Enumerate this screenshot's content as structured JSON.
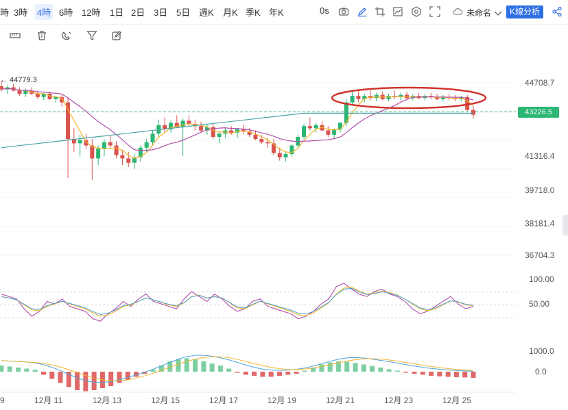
{
  "toolbar": {
    "timeframes": [
      "時",
      "3時",
      "4時",
      "6時",
      "12時",
      "1日",
      "2日",
      "3日",
      "5日",
      "週K",
      "月K",
      "季K",
      "年K"
    ],
    "active_timeframe": "4時",
    "countdown": "0s",
    "layout_name": "未命名",
    "kline_analysis_label": "K線分析",
    "icons": [
      "camera-icon",
      "pencil-icon",
      "crop-icon",
      "image-icon",
      "settings-icon",
      "fullscreen-icon",
      "cloud-icon",
      "chevron-down-icon",
      "share-icon"
    ]
  },
  "drawing_tools": {
    "icons": [
      "ruler-icon",
      "trash-icon",
      "magnet-icon",
      "filter-icon",
      "edit-box-icon"
    ]
  },
  "price_panel": {
    "max_label": "← 44779.3",
    "current_price": "43226.5",
    "axis_labels": [
      "44708.7",
      "43226.5",
      "41316.4",
      "39718.0",
      "38181.4",
      "36704.3"
    ],
    "colors": {
      "up": "#2bb673",
      "down": "#d9534f",
      "ma_fast": "#f0b429",
      "ma_mid": "#b24fa8",
      "ma_slow": "#4aa3a3",
      "highlight": "#d0342c"
    }
  },
  "oscillator_panel": {
    "axis_labels": [
      "100.00",
      "50.00"
    ]
  },
  "macd_panel": {
    "axis_labels": [
      "1000.0",
      "0.0"
    ]
  },
  "x_axis": {
    "labels": [
      "9",
      "12月 11",
      "12月 13",
      "12月 15",
      "12月 17",
      "12月 19",
      "12月 21",
      "12月 23",
      "12月 25"
    ]
  },
  "chart_data": {
    "type": "candlestick",
    "price_range": [
      36704.3,
      44708.7
    ],
    "ohlc": [
      [
        44550,
        44779,
        44300,
        44400
      ],
      [
        44400,
        44600,
        44200,
        44500
      ],
      [
        44500,
        44650,
        44300,
        44350
      ],
      [
        44350,
        44500,
        44100,
        44200
      ],
      [
        44200,
        44450,
        44050,
        44350
      ],
      [
        44350,
        44500,
        44150,
        44200
      ],
      [
        44200,
        44350,
        43950,
        44050
      ],
      [
        44050,
        44300,
        43900,
        44200
      ],
      [
        44200,
        44300,
        43900,
        43950
      ],
      [
        43950,
        44100,
        43800,
        44050
      ],
      [
        44050,
        44150,
        43600,
        43800
      ],
      [
        43800,
        44050,
        40300,
        42100
      ],
      [
        42100,
        42600,
        41500,
        41900
      ],
      [
        41900,
        42300,
        41300,
        42050
      ],
      [
        42050,
        42350,
        41650,
        41800
      ],
      [
        41800,
        42100,
        40200,
        41200
      ],
      [
        41200,
        41800,
        40900,
        41650
      ],
      [
        41650,
        42100,
        41300,
        41950
      ],
      [
        41950,
        42250,
        41650,
        41800
      ],
      [
        41800,
        42000,
        41200,
        41350
      ],
      [
        41350,
        41600,
        40900,
        41200
      ],
      [
        41200,
        41500,
        40800,
        41000
      ],
      [
        41000,
        41400,
        40700,
        41250
      ],
      [
        41250,
        41800,
        41050,
        41700
      ],
      [
        41700,
        42100,
        41500,
        41950
      ],
      [
        41950,
        42500,
        41800,
        42350
      ],
      [
        42350,
        43000,
        42200,
        42750
      ],
      [
        42750,
        43100,
        42400,
        42550
      ],
      [
        42550,
        42950,
        42400,
        42850
      ],
      [
        42850,
        43200,
        42600,
        42650
      ],
      [
        42650,
        43050,
        41300,
        42950
      ],
      [
        42950,
        43200,
        42700,
        42800
      ],
      [
        42800,
        43000,
        42500,
        42700
      ],
      [
        42700,
        42900,
        42400,
        42500
      ],
      [
        42500,
        42800,
        42300,
        42650
      ],
      [
        42650,
        42800,
        42100,
        42200
      ],
      [
        42200,
        42450,
        41900,
        42350
      ],
      [
        42350,
        42650,
        42150,
        42500
      ],
      [
        42500,
        42700,
        42300,
        42400
      ],
      [
        42400,
        42600,
        42150,
        42550
      ],
      [
        42550,
        42750,
        42350,
        42450
      ],
      [
        42450,
        42600,
        42200,
        42300
      ],
      [
        42300,
        42500,
        42050,
        42100
      ],
      [
        42100,
        42300,
        41850,
        41950
      ],
      [
        41950,
        42150,
        41700,
        41900
      ],
      [
        41900,
        42100,
        41350,
        41450
      ],
      [
        41450,
        41700,
        41100,
        41250
      ],
      [
        41250,
        41500,
        41050,
        41400
      ],
      [
        41400,
        41850,
        41300,
        41800
      ],
      [
        41800,
        42300,
        41700,
        42200
      ],
      [
        42200,
        42800,
        42100,
        42700
      ],
      [
        42700,
        43100,
        42500,
        42600
      ],
      [
        42600,
        42850,
        42400,
        42750
      ],
      [
        42750,
        42950,
        42450,
        42500
      ],
      [
        42500,
        42700,
        42200,
        42300
      ],
      [
        42300,
        42600,
        42150,
        42550
      ],
      [
        42550,
        42900,
        42400,
        42850
      ],
      [
        42850,
        43950,
        42700,
        43800
      ],
      [
        43800,
        44300,
        43650,
        44100
      ],
      [
        44100,
        44350,
        43800,
        43950
      ],
      [
        43950,
        44200,
        43800,
        44100
      ],
      [
        44100,
        44350,
        43900,
        44000
      ],
      [
        44000,
        44250,
        43850,
        44150
      ],
      [
        44150,
        44300,
        43900,
        43950
      ],
      [
        43950,
        44200,
        43850,
        44100
      ],
      [
        44100,
        44350,
        43950,
        44050
      ],
      [
        44050,
        44250,
        43900,
        44150
      ],
      [
        44150,
        44300,
        43950,
        44000
      ],
      [
        44000,
        44200,
        43900,
        44100
      ],
      [
        44100,
        44250,
        43950,
        44000
      ],
      [
        44000,
        44200,
        43900,
        44100
      ],
      [
        44100,
        44250,
        43950,
        44050
      ],
      [
        44050,
        44200,
        43900,
        43950
      ],
      [
        43950,
        44150,
        43850,
        44050
      ],
      [
        44050,
        44200,
        43900,
        44000
      ],
      [
        44000,
        44150,
        43850,
        43950
      ],
      [
        43950,
        44100,
        43850,
        44050
      ],
      [
        44050,
        44150,
        43400,
        43450
      ],
      [
        43450,
        43650,
        43050,
        43226.5
      ]
    ],
    "oscillator": {
      "range": [
        0,
        100
      ],
      "k": [
        70,
        65,
        60,
        40,
        25,
        35,
        55,
        50,
        60,
        45,
        40,
        35,
        20,
        15,
        30,
        40,
        55,
        45,
        60,
        70,
        55,
        50,
        45,
        40,
        60,
        75,
        65,
        55,
        70,
        60,
        45,
        35,
        40,
        55,
        60,
        45,
        40,
        35,
        30,
        20,
        25,
        35,
        50,
        60,
        85,
        92,
        80,
        70,
        65,
        75,
        80,
        70,
        65,
        55,
        40,
        30,
        35,
        45,
        55,
        65,
        50,
        40,
        45
      ],
      "d": [
        65,
        62,
        58,
        48,
        38,
        36,
        45,
        50,
        55,
        50,
        45,
        40,
        32,
        25,
        28,
        35,
        45,
        48,
        55,
        62,
        58,
        53,
        48,
        45,
        52,
        65,
        68,
        62,
        65,
        62,
        52,
        42,
        40,
        48,
        55,
        50,
        45,
        40,
        35,
        28,
        26,
        32,
        42,
        52,
        70,
        82,
        84,
        76,
        70,
        72,
        76,
        73,
        68,
        60,
        50,
        40,
        36,
        40,
        48,
        56,
        54,
        48,
        46
      ]
    },
    "macd_hist": [
      300,
      250,
      200,
      150,
      100,
      -150,
      -350,
      -550,
      -750,
      -900,
      -950,
      -900,
      -800,
      -700,
      -550,
      -400,
      -250,
      -100,
      100,
      300,
      500,
      600,
      650,
      600,
      500,
      400,
      300,
      150,
      -50,
      -150,
      -200,
      -250,
      -250,
      -200,
      -150,
      -100,
      50,
      200,
      350,
      450,
      500,
      480,
      420,
      350,
      280,
      200,
      120,
      50,
      -50,
      -100,
      -150,
      -200,
      -230,
      -250,
      -270,
      -280,
      -300
    ],
    "macd_range": [
      -1000,
      1000
    ]
  }
}
